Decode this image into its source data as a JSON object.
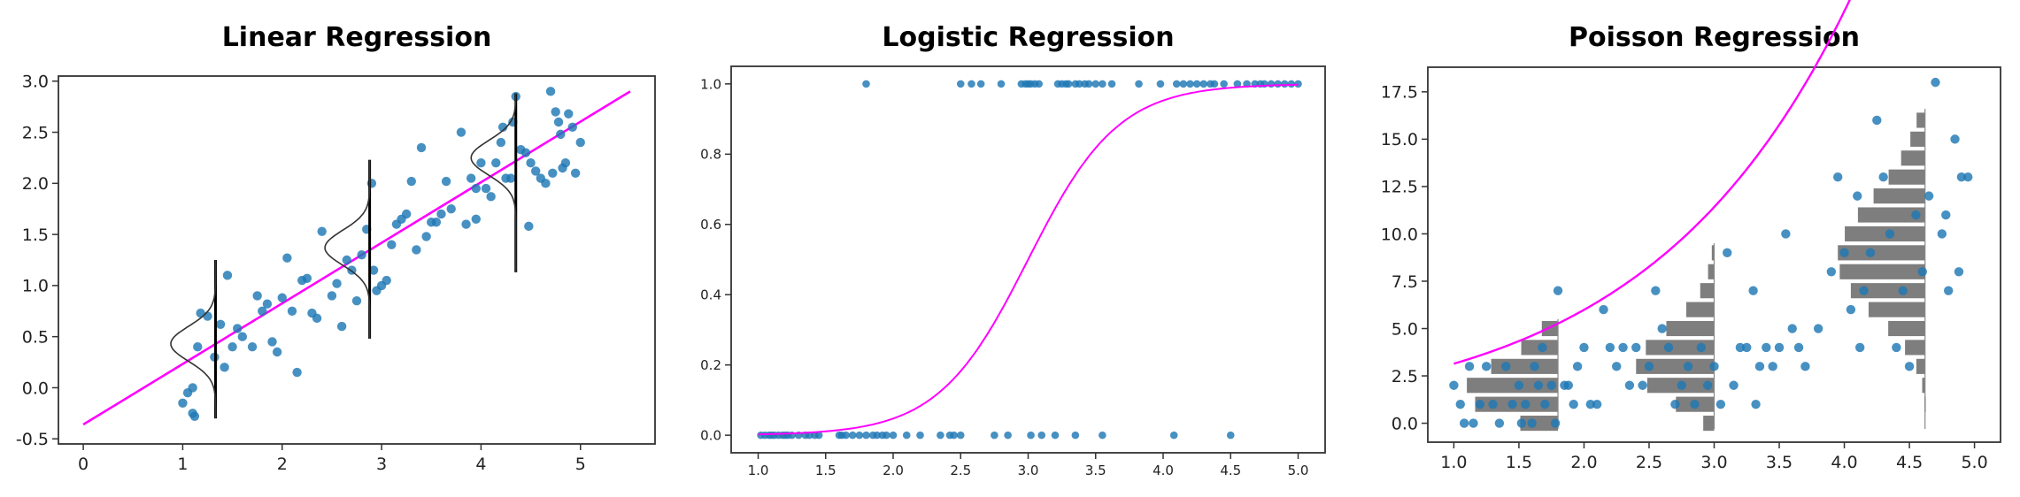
{
  "chart_data": [
    {
      "type": "scatter",
      "title": "Linear Regression",
      "xlabel": "",
      "ylabel": "",
      "xlim": [
        -0.25,
        5.75
      ],
      "ylim": [
        -0.55,
        3.05
      ],
      "x_ticks": [
        "0",
        "1",
        "2",
        "3",
        "4",
        "5"
      ],
      "y_ticks": [
        "-0.5",
        "0.0",
        "0.5",
        "1.0",
        "1.5",
        "2.0",
        "2.5",
        "3.0"
      ],
      "grid": false,
      "colors": {
        "points": "#1f77b4",
        "fit": "#ff00ff",
        "distribution": "#333333",
        "vline": "#000000"
      },
      "fit_line": {
        "x": [
          0,
          5.5
        ],
        "y": [
          -0.36,
          2.9
        ]
      },
      "distributions": [
        {
          "x": 1.33,
          "ymin": -0.3,
          "ymax": 1.25,
          "mean": 0.43,
          "sd": 0.17,
          "width": 0.45
        },
        {
          "x": 2.88,
          "ymin": 0.48,
          "ymax": 2.23,
          "mean": 1.37,
          "sd": 0.17,
          "width": 0.45
        },
        {
          "x": 4.35,
          "ymin": 1.13,
          "ymax": 2.88,
          "mean": 2.25,
          "sd": 0.17,
          "width": 0.45
        }
      ],
      "points": [
        [
          1.0,
          -0.15
        ],
        [
          1.05,
          -0.05
        ],
        [
          1.1,
          0.0
        ],
        [
          1.1,
          -0.25
        ],
        [
          1.12,
          -0.28
        ],
        [
          1.15,
          0.4
        ],
        [
          1.18,
          0.73
        ],
        [
          1.25,
          0.7
        ],
        [
          1.32,
          0.3
        ],
        [
          1.38,
          0.62
        ],
        [
          1.42,
          0.2
        ],
        [
          1.45,
          1.1
        ],
        [
          1.5,
          0.4
        ],
        [
          1.55,
          0.58
        ],
        [
          1.6,
          0.5
        ],
        [
          1.7,
          0.4
        ],
        [
          1.75,
          0.9
        ],
        [
          1.8,
          0.75
        ],
        [
          1.85,
          0.82
        ],
        [
          1.9,
          0.45
        ],
        [
          1.95,
          0.35
        ],
        [
          2.0,
          0.88
        ],
        [
          2.05,
          1.27
        ],
        [
          2.1,
          0.75
        ],
        [
          2.15,
          0.15
        ],
        [
          2.2,
          1.05
        ],
        [
          2.25,
          1.07
        ],
        [
          2.3,
          0.73
        ],
        [
          2.35,
          0.68
        ],
        [
          2.4,
          1.53
        ],
        [
          2.5,
          0.9
        ],
        [
          2.55,
          1.02
        ],
        [
          2.6,
          0.6
        ],
        [
          2.65,
          1.25
        ],
        [
          2.7,
          1.15
        ],
        [
          2.75,
          0.85
        ],
        [
          2.8,
          1.3
        ],
        [
          2.85,
          1.55
        ],
        [
          2.9,
          2.0
        ],
        [
          2.92,
          1.15
        ],
        [
          2.95,
          0.95
        ],
        [
          3.0,
          1.0
        ],
        [
          3.05,
          1.05
        ],
        [
          3.1,
          1.4
        ],
        [
          3.15,
          1.6
        ],
        [
          3.2,
          1.65
        ],
        [
          3.25,
          1.7
        ],
        [
          3.3,
          2.02
        ],
        [
          3.35,
          1.35
        ],
        [
          3.4,
          2.35
        ],
        [
          3.45,
          1.48
        ],
        [
          3.5,
          1.62
        ],
        [
          3.55,
          1.62
        ],
        [
          3.6,
          1.7
        ],
        [
          3.65,
          2.02
        ],
        [
          3.7,
          1.75
        ],
        [
          3.8,
          2.5
        ],
        [
          3.85,
          1.6
        ],
        [
          3.9,
          2.05
        ],
        [
          3.95,
          1.65
        ],
        [
          4.0,
          2.2
        ],
        [
          4.05,
          1.95
        ],
        [
          4.1,
          1.87
        ],
        [
          4.15,
          2.2
        ],
        [
          4.2,
          2.4
        ],
        [
          4.22,
          2.55
        ],
        [
          4.25,
          2.05
        ],
        [
          4.3,
          2.05
        ],
        [
          4.32,
          2.6
        ],
        [
          4.35,
          2.85
        ],
        [
          4.4,
          2.33
        ],
        [
          4.45,
          2.3
        ],
        [
          4.5,
          2.2
        ],
        [
          4.48,
          1.58
        ],
        [
          4.55,
          2.12
        ],
        [
          4.6,
          2.05
        ],
        [
          4.65,
          2.0
        ],
        [
          4.7,
          2.9
        ],
        [
          4.75,
          2.7
        ],
        [
          4.78,
          2.6
        ],
        [
          4.8,
          2.48
        ],
        [
          4.85,
          2.2
        ],
        [
          4.88,
          2.68
        ],
        [
          4.92,
          2.55
        ],
        [
          4.95,
          2.1
        ],
        [
          5.0,
          2.4
        ],
        [
          4.82,
          2.15
        ],
        [
          4.72,
          2.1
        ],
        [
          3.95,
          1.95
        ]
      ]
    },
    {
      "type": "scatter",
      "title": "Logistic Regression",
      "xlabel": "",
      "ylabel": "",
      "xlim": [
        0.8,
        5.2
      ],
      "ylim": [
        -0.05,
        1.05
      ],
      "x_ticks": [
        "1.0",
        "1.5",
        "2.0",
        "2.5",
        "3.0",
        "3.5",
        "4.0",
        "4.5",
        "5.0"
      ],
      "y_ticks": [
        "0.0",
        "0.2",
        "0.4",
        "0.6",
        "0.8",
        "1.0"
      ],
      "grid": false,
      "colors": {
        "points": "#1f77b4",
        "fit": "#ff00ff"
      },
      "fit_curve": {
        "intercept": -9.0,
        "slope": 3.0,
        "x": [
          1.0,
          5.0
        ]
      },
      "points": [
        [
          1.02,
          0
        ],
        [
          1.05,
          0
        ],
        [
          1.08,
          0
        ],
        [
          1.1,
          0
        ],
        [
          1.12,
          0
        ],
        [
          1.15,
          0
        ],
        [
          1.18,
          0
        ],
        [
          1.2,
          0
        ],
        [
          1.22,
          0
        ],
        [
          1.25,
          0
        ],
        [
          1.3,
          0
        ],
        [
          1.35,
          0
        ],
        [
          1.38,
          0
        ],
        [
          1.42,
          0
        ],
        [
          1.45,
          0
        ],
        [
          1.6,
          0
        ],
        [
          1.62,
          0
        ],
        [
          1.65,
          0
        ],
        [
          1.7,
          0
        ],
        [
          1.75,
          0
        ],
        [
          1.8,
          0
        ],
        [
          1.85,
          0
        ],
        [
          1.88,
          0
        ],
        [
          1.92,
          0
        ],
        [
          1.95,
          0
        ],
        [
          2.0,
          0
        ],
        [
          2.1,
          0
        ],
        [
          2.2,
          0
        ],
        [
          2.35,
          0
        ],
        [
          2.42,
          0
        ],
        [
          2.45,
          0
        ],
        [
          2.5,
          0
        ],
        [
          2.75,
          0
        ],
        [
          2.85,
          0
        ],
        [
          3.02,
          0
        ],
        [
          3.1,
          0
        ],
        [
          3.2,
          0
        ],
        [
          3.35,
          0
        ],
        [
          3.55,
          0
        ],
        [
          4.08,
          0
        ],
        [
          4.5,
          0
        ],
        [
          1.8,
          1
        ],
        [
          2.5,
          1
        ],
        [
          2.58,
          1
        ],
        [
          2.65,
          1
        ],
        [
          2.8,
          1
        ],
        [
          2.95,
          1
        ],
        [
          2.98,
          1
        ],
        [
          3.0,
          1
        ],
        [
          3.02,
          1
        ],
        [
          3.05,
          1
        ],
        [
          3.08,
          1
        ],
        [
          3.22,
          1
        ],
        [
          3.25,
          1
        ],
        [
          3.28,
          1
        ],
        [
          3.3,
          1
        ],
        [
          3.35,
          1
        ],
        [
          3.38,
          1
        ],
        [
          3.42,
          1
        ],
        [
          3.45,
          1
        ],
        [
          3.5,
          1
        ],
        [
          3.55,
          1
        ],
        [
          3.62,
          1
        ],
        [
          3.82,
          1
        ],
        [
          3.98,
          1
        ],
        [
          4.1,
          1
        ],
        [
          4.15,
          1
        ],
        [
          4.2,
          1
        ],
        [
          4.25,
          1
        ],
        [
          4.3,
          1
        ],
        [
          4.35,
          1
        ],
        [
          4.38,
          1
        ],
        [
          4.45,
          1
        ],
        [
          4.55,
          1
        ],
        [
          4.62,
          1
        ],
        [
          4.68,
          1
        ],
        [
          4.72,
          1
        ],
        [
          4.75,
          1
        ],
        [
          4.8,
          1
        ],
        [
          4.85,
          1
        ],
        [
          4.9,
          1
        ],
        [
          4.95,
          1
        ],
        [
          5.0,
          1
        ]
      ]
    },
    {
      "type": "scatter",
      "title": "Poisson Regression",
      "xlabel": "",
      "ylabel": "",
      "xlim": [
        0.8,
        5.2
      ],
      "ylim": [
        -1.0,
        18.8
      ],
      "x_ticks": [
        "1.0",
        "1.5",
        "2.0",
        "2.5",
        "3.0",
        "3.5",
        "4.0",
        "4.5",
        "5.0"
      ],
      "y_ticks": [
        "0.0",
        "2.5",
        "5.0",
        "7.5",
        "10.0",
        "12.5",
        "15.0",
        "17.5"
      ],
      "grid": false,
      "colors": {
        "points": "#1f77b4",
        "fit": "#ff00ff",
        "histogram": "#777777"
      },
      "fit_curve": {
        "a": 0.5,
        "b": 0.645,
        "x": [
          1.0,
          5.0
        ]
      },
      "histograms": [
        {
          "x_base": 1.1,
          "x_max": 1.8,
          "lambda": 2.2,
          "ymax": 5.5
        },
        {
          "x_base": 2.4,
          "x_max": 3.0,
          "lambda": 3.5,
          "ymax": 9.5
        },
        {
          "x_base": 3.95,
          "x_max": 4.62,
          "lambda": 9.2,
          "ymax": 16.6
        }
      ],
      "points": [
        [
          1.0,
          2.0
        ],
        [
          1.05,
          1.0
        ],
        [
          1.08,
          0
        ],
        [
          1.12,
          3.0
        ],
        [
          1.15,
          0
        ],
        [
          1.2,
          1.0
        ],
        [
          1.25,
          3.0
        ],
        [
          1.3,
          1.0
        ],
        [
          1.35,
          0
        ],
        [
          1.4,
          3.0
        ],
        [
          1.45,
          1.0
        ],
        [
          1.5,
          2.0
        ],
        [
          1.52,
          0
        ],
        [
          1.55,
          1.0
        ],
        [
          1.6,
          0
        ],
        [
          1.62,
          3.0
        ],
        [
          1.65,
          2.0
        ],
        [
          1.68,
          4.0
        ],
        [
          1.7,
          1.0
        ],
        [
          1.75,
          2.0
        ],
        [
          1.78,
          0
        ],
        [
          1.8,
          7.0
        ],
        [
          1.85,
          2.0
        ],
        [
          1.88,
          2.0
        ],
        [
          1.92,
          1.0
        ],
        [
          1.95,
          3.0
        ],
        [
          2.0,
          4.0
        ],
        [
          2.05,
          1.0
        ],
        [
          2.1,
          1.0
        ],
        [
          2.15,
          6.0
        ],
        [
          2.2,
          4.0
        ],
        [
          2.25,
          3.0
        ],
        [
          2.3,
          4.0
        ],
        [
          2.35,
          2.0
        ],
        [
          2.4,
          4.0
        ],
        [
          2.45,
          2.0
        ],
        [
          2.5,
          3.0
        ],
        [
          2.55,
          7.0
        ],
        [
          2.6,
          5.0
        ],
        [
          2.65,
          4.0
        ],
        [
          2.7,
          1.0
        ],
        [
          2.75,
          2.0
        ],
        [
          2.8,
          3.0
        ],
        [
          2.85,
          1.0
        ],
        [
          2.9,
          4.0
        ],
        [
          2.95,
          2.0
        ],
        [
          3.0,
          3.0
        ],
        [
          3.05,
          1.0
        ],
        [
          3.1,
          9.0
        ],
        [
          3.15,
          2.0
        ],
        [
          3.2,
          4.0
        ],
        [
          3.25,
          4.0
        ],
        [
          3.3,
          7.0
        ],
        [
          3.32,
          1.0
        ],
        [
          3.35,
          3.0
        ],
        [
          3.4,
          4.0
        ],
        [
          3.45,
          3.0
        ],
        [
          3.5,
          4.0
        ],
        [
          3.55,
          10.0
        ],
        [
          3.6,
          5.0
        ],
        [
          3.65,
          4.0
        ],
        [
          3.7,
          3.0
        ],
        [
          3.8,
          5.0
        ],
        [
          3.9,
          8.0
        ],
        [
          3.95,
          13.0
        ],
        [
          4.0,
          9.0
        ],
        [
          4.05,
          6.0
        ],
        [
          4.1,
          12.0
        ],
        [
          4.12,
          4.0
        ],
        [
          4.15,
          7.0
        ],
        [
          4.2,
          9.0
        ],
        [
          4.25,
          16.0
        ],
        [
          4.3,
          13.0
        ],
        [
          4.35,
          10.0
        ],
        [
          4.4,
          4.0
        ],
        [
          4.45,
          7.0
        ],
        [
          4.5,
          3.0
        ],
        [
          4.55,
          11.0
        ],
        [
          4.6,
          8.0
        ],
        [
          4.65,
          12.0
        ],
        [
          4.7,
          18.0
        ],
        [
          4.75,
          10.0
        ],
        [
          4.8,
          7.0
        ],
        [
          4.85,
          15.0
        ],
        [
          4.88,
          8.0
        ],
        [
          4.9,
          13.0
        ],
        [
          4.95,
          13.0
        ],
        [
          4.78,
          11.0
        ]
      ]
    }
  ]
}
